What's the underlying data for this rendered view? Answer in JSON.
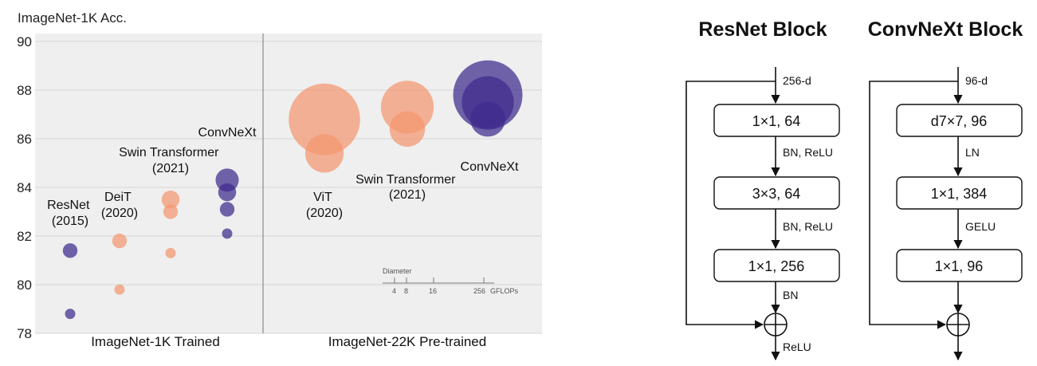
{
  "chart_data": {
    "type": "scatter",
    "ylabel": "ImageNet-1K Acc.",
    "ylim": [
      78,
      90
    ],
    "yticks": [
      "78",
      "80",
      "82",
      "84",
      "86",
      "88",
      "90"
    ],
    "colors": {
      "orange": "#f4956f",
      "purple": "#3d2a8c",
      "background": "#efefef"
    },
    "panels": [
      {
        "label": "ImageNet-1K Trained",
        "models": [
          {
            "name": "ResNet (2015)",
            "color": "purple",
            "points": [
              {
                "gflops": 4,
                "acc": 78.8
              },
              {
                "gflops": 8,
                "acc": 81.4
              }
            ]
          },
          {
            "name": "DeiT (2020)",
            "color": "orange",
            "points": [
              {
                "gflops": 4,
                "acc": 79.8
              },
              {
                "gflops": 8,
                "acc": 81.8
              }
            ]
          },
          {
            "name": "Swin Transformer (2021)",
            "color": "orange",
            "points": [
              {
                "gflops": 4,
                "acc": 81.3
              },
              {
                "gflops": 8,
                "acc": 83.0
              },
              {
                "gflops": 12,
                "acc": 83.5
              }
            ]
          },
          {
            "name": "ConvNeXt",
            "color": "purple",
            "points": [
              {
                "gflops": 4,
                "acc": 82.1
              },
              {
                "gflops": 8,
                "acc": 83.1
              },
              {
                "gflops": 12,
                "acc": 83.8
              },
              {
                "gflops": 20,
                "acc": 84.3
              }
            ]
          }
        ]
      },
      {
        "label": "ImageNet-22K Pre-trained",
        "models": [
          {
            "name": "ViT (2020)",
            "color": "orange",
            "points": [
              {
                "gflops": 55,
                "acc": 85.4
              },
              {
                "gflops": 190,
                "acc": 86.8
              }
            ]
          },
          {
            "name": "Swin Transformer (2021)",
            "color": "orange",
            "points": [
              {
                "gflops": 47,
                "acc": 86.4
              },
              {
                "gflops": 104,
                "acc": 87.3
              }
            ]
          },
          {
            "name": "ConvNeXt",
            "color": "purple",
            "points": [
              {
                "gflops": 179,
                "acc": 87.8
              },
              {
                "gflops": 101,
                "acc": 87.5
              },
              {
                "gflops": 45,
                "acc": 86.8
              }
            ]
          }
        ]
      }
    ],
    "size_legend": {
      "title": "Diameter",
      "ticks": [
        "4",
        "8",
        "16",
        "256"
      ],
      "unit": "GFLOPs"
    }
  },
  "annotations": {
    "resnet": [
      "ResNet",
      "(2015)"
    ],
    "deit": [
      "DeiT",
      "(2020)"
    ],
    "swin_1k": [
      "Swin Transformer",
      "(2021)"
    ],
    "convnext_1k": [
      "ConvNeXt"
    ],
    "vit": [
      "ViT",
      "(2020)"
    ],
    "swin_22k": [
      "Swin Transformer",
      "(2021)"
    ],
    "convnext_22k": [
      "ConvNeXt"
    ]
  },
  "blocks": {
    "resnet": {
      "title": "ResNet Block",
      "input": "256-d",
      "layers": [
        "1×1, 64",
        "3×3, 64",
        "1×1, 256"
      ],
      "between": [
        "BN, ReLU",
        "BN, ReLU",
        "BN"
      ],
      "output": "ReLU"
    },
    "convnext": {
      "title": "ConvNeXt Block",
      "input": "96-d",
      "layers": [
        "d7×7, 96",
        "1×1, 384",
        "1×1, 96"
      ],
      "between": [
        "LN",
        "GELU"
      ]
    }
  }
}
